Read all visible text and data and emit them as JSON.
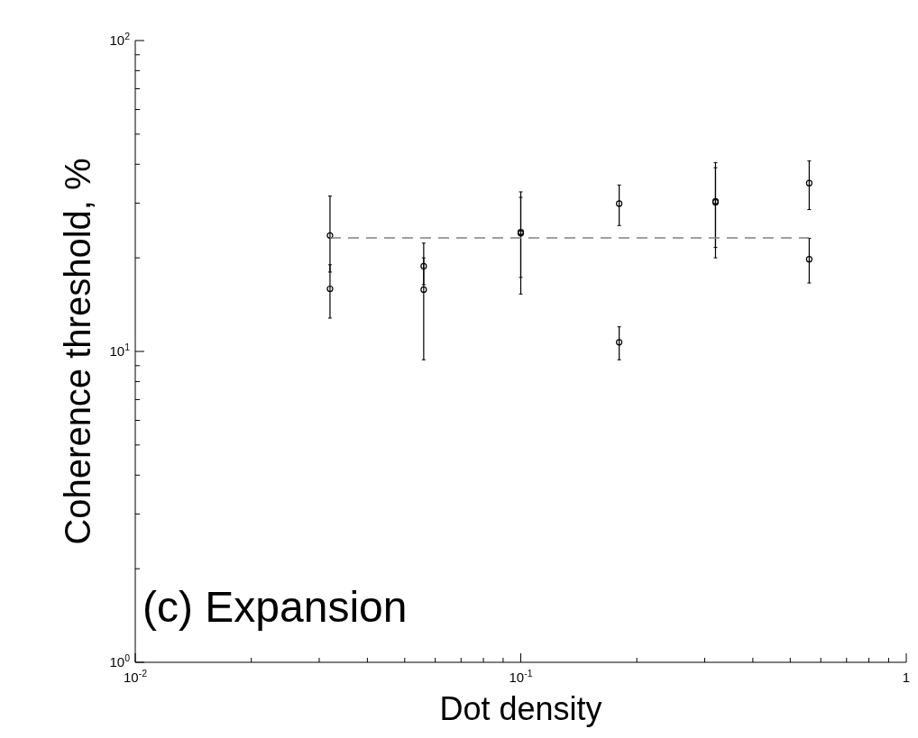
{
  "chart_data": {
    "type": "scatter",
    "xlabel": "Dot density",
    "ylabel": "Coherence threshold, %",
    "log": "xy",
    "marker": "circle",
    "xlim": [
      0.01,
      1
    ],
    "ylim": [
      1,
      100
    ],
    "xticks": [
      {
        "value": 0.01,
        "label": "10$^{-2}$"
      },
      {
        "value": 0.02,
        "label": null
      },
      {
        "value": 0.03,
        "label": null
      },
      {
        "value": 0.04,
        "label": null
      },
      {
        "value": 0.05,
        "label": null
      },
      {
        "value": 0.06,
        "label": null
      },
      {
        "value": 0.07,
        "label": null
      },
      {
        "value": 0.08,
        "label": null
      },
      {
        "value": 0.09,
        "label": null
      },
      {
        "value": 0.1,
        "label": "10$^{-1}$"
      },
      {
        "value": 0.2,
        "label": null
      },
      {
        "value": 0.3,
        "label": null
      },
      {
        "value": 0.4,
        "label": null
      },
      {
        "value": 0.5,
        "label": null
      },
      {
        "value": 0.6,
        "label": null
      },
      {
        "value": 0.7,
        "label": null
      },
      {
        "value": 0.8,
        "label": null
      },
      {
        "value": 0.9,
        "label": null
      },
      1
    ],
    "yticks": [
      {
        "value": 1,
        "label": "10$^{0}$"
      },
      {
        "value": 2,
        "label": null
      },
      {
        "value": 3,
        "label": null
      },
      {
        "value": 4,
        "label": null
      },
      {
        "value": 5,
        "label": null
      },
      {
        "value": 6,
        "label": null
      },
      {
        "value": 7,
        "label": null
      },
      {
        "value": 8,
        "label": null
      },
      {
        "value": 9,
        "label": null
      },
      {
        "value": 10,
        "label": "10$^{1}$"
      },
      {
        "value": 20,
        "label": null
      },
      {
        "value": 30,
        "label": null
      },
      {
        "value": 40,
        "label": null
      },
      {
        "value": 50,
        "label": null
      },
      {
        "value": 60,
        "label": null
      },
      {
        "value": 70,
        "label": null
      },
      {
        "value": 80,
        "label": null
      },
      {
        "value": 90,
        "label": null
      },
      {
        "value": 100,
        "label": "10$^{2}$"
      }
    ],
    "annotations": [
      "(c) Expansion"
    ],
    "series": [
      {
        "color": "#000000",
        "x": [
          0.032,
          0.032,
          0.056,
          0.056,
          0.1,
          0.1,
          0.18,
          0.18,
          0.32,
          0.32,
          0.56,
          0.56
        ],
        "values": [
          23.6,
          15.9,
          18.8,
          15.8,
          24.2,
          24.0,
          29.9,
          10.7,
          30.4,
          30.2,
          34.8,
          19.8
        ],
        "errors": [
          [
            18,
            31.6
          ],
          [
            12.8,
            19
          ],
          [
            16.4,
            22.3
          ],
          [
            9.4,
            20
          ],
          [
            17.3,
            31.3
          ],
          [
            15.3,
            32.6
          ],
          [
            25.4,
            34.3
          ],
          [
            9.4,
            12
          ],
          [
            20,
            40.5
          ],
          [
            21.6,
            39
          ],
          [
            28.6,
            41
          ],
          [
            16.6,
            23.1
          ]
        ]
      },
      {
        "type": "line",
        "color": "#808080",
        "line_style": "dashed",
        "marker": "none",
        "x": [
          0.032,
          0.56
        ],
        "values": [
          23.2,
          23.2
        ]
      }
    ]
  }
}
